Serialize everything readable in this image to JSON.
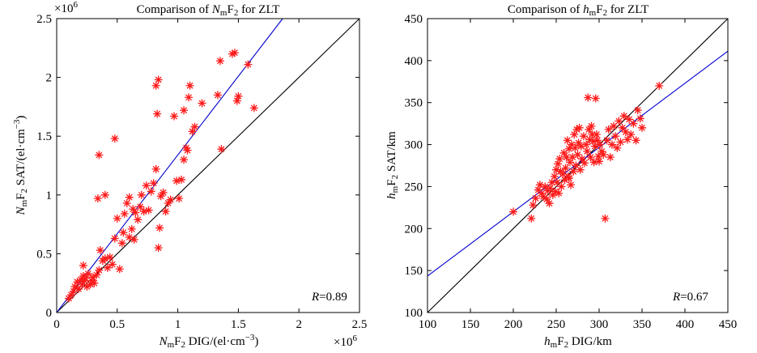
{
  "chart_data": [
    {
      "type": "scatter",
      "title": "Comparison of NmF2 for ZLT",
      "title_parts": {
        "pre": "Comparison of ",
        "var": "N",
        "sub": "m",
        "post": "F",
        "sub2": "2",
        "tail": " for ZLT"
      },
      "xlabel": "NmF2 DIG/(el·cm⁻³)",
      "xlabel_parts": {
        "var": "N",
        "sub": "m",
        "mid": "F",
        "sub2": "2",
        "rest": " DIG/(el·cm",
        "sup": "−3",
        "end": ")"
      },
      "ylabel": "NmF2 SAT/(el·cm⁻³)",
      "ylabel_parts": {
        "var": "N",
        "sub": "m",
        "mid": "F",
        "sub2": "2",
        "rest": " SAT/(el·cm",
        "sup": "−3",
        "end": ")"
      },
      "xlim": [
        0,
        2.5
      ],
      "ylim": [
        0,
        2.5
      ],
      "xticks": [
        0,
        0.5,
        1,
        1.5,
        2,
        2.5
      ],
      "xtick_labels": [
        "0",
        "0.5",
        "1",
        "1.5",
        "2",
        "2.5"
      ],
      "yticks": [
        0,
        0.5,
        1,
        1.5,
        2,
        2.5
      ],
      "ytick_labels": [
        "0",
        "0.5",
        "1",
        "1.5",
        "2",
        "2.5"
      ],
      "x_multiplier": {
        "base": "×10",
        "exp": "6"
      },
      "y_multiplier": {
        "base": "×10",
        "exp": "6"
      },
      "correlation": {
        "symbol": "R",
        "value": "=0.89"
      },
      "reference_line": {
        "color": "#000000",
        "slope": 1,
        "intercept": 0
      },
      "fit_line": {
        "color": "#0000cc",
        "slope": 1.34,
        "intercept": 0
      },
      "marker_color": "#ff0000",
      "points": [
        [
          0.1,
          0.12
        ],
        [
          0.12,
          0.15
        ],
        [
          0.14,
          0.18
        ],
        [
          0.15,
          0.22
        ],
        [
          0.17,
          0.26
        ],
        [
          0.18,
          0.2
        ],
        [
          0.2,
          0.28
        ],
        [
          0.21,
          0.24
        ],
        [
          0.22,
          0.31
        ],
        [
          0.23,
          0.27
        ],
        [
          0.24,
          0.29
        ],
        [
          0.25,
          0.22
        ],
        [
          0.26,
          0.33
        ],
        [
          0.28,
          0.24
        ],
        [
          0.29,
          0.27
        ],
        [
          0.3,
          0.3
        ],
        [
          0.22,
          0.4
        ],
        [
          0.31,
          0.25
        ],
        [
          0.33,
          0.32
        ],
        [
          0.35,
          0.36
        ],
        [
          0.36,
          0.53
        ],
        [
          0.38,
          0.44
        ],
        [
          0.4,
          0.46
        ],
        [
          0.42,
          0.38
        ],
        [
          0.44,
          0.47
        ],
        [
          0.46,
          0.41
        ],
        [
          0.48,
          0.63
        ],
        [
          0.5,
          0.8
        ],
        [
          0.52,
          0.37
        ],
        [
          0.54,
          0.59
        ],
        [
          0.55,
          0.68
        ],
        [
          0.56,
          0.84
        ],
        [
          0.58,
          0.93
        ],
        [
          0.6,
          0.64
        ],
        [
          0.62,
          0.71
        ],
        [
          0.63,
          0.88
        ],
        [
          0.64,
          0.62
        ],
        [
          0.65,
          0.85
        ],
        [
          0.67,
          0.79
        ],
        [
          0.69,
          0.9
        ],
        [
          0.7,
          1.0
        ],
        [
          0.72,
          0.86
        ],
        [
          0.74,
          1.08
        ],
        [
          0.76,
          0.87
        ],
        [
          0.78,
          1.03
        ],
        [
          0.8,
          1.1
        ],
        [
          0.82,
          1.22
        ],
        [
          0.84,
          0.55
        ],
        [
          0.85,
          0.72
        ],
        [
          0.86,
          0.99
        ],
        [
          0.88,
          1.02
        ],
        [
          0.9,
          0.86
        ],
        [
          0.92,
          0.93
        ],
        [
          0.94,
          0.96
        ],
        [
          0.97,
          1.67
        ],
        [
          0.99,
          1.12
        ],
        [
          1.01,
          0.97
        ],
        [
          1.03,
          1.13
        ],
        [
          1.05,
          1.72
        ],
        [
          1.07,
          1.4
        ],
        [
          1.09,
          1.83
        ],
        [
          1.1,
          1.93
        ],
        [
          1.12,
          1.54
        ],
        [
          1.14,
          1.58
        ],
        [
          1.2,
          1.78
        ],
        [
          1.33,
          1.85
        ],
        [
          1.35,
          2.14
        ],
        [
          1.36,
          1.39
        ],
        [
          1.45,
          2.2
        ],
        [
          1.47,
          2.21
        ],
        [
          1.49,
          1.8
        ],
        [
          1.5,
          1.84
        ],
        [
          1.58,
          2.11
        ],
        [
          1.63,
          1.74
        ],
        [
          0.82,
          1.93
        ],
        [
          0.84,
          1.98
        ],
        [
          0.83,
          1.69
        ],
        [
          0.34,
          0.97
        ],
        [
          0.35,
          1.34
        ],
        [
          0.4,
          1.0
        ],
        [
          0.48,
          1.48
        ],
        [
          1.05,
          1.3
        ],
        [
          1.08,
          1.38
        ],
        [
          0.6,
          0.98
        ]
      ]
    },
    {
      "type": "scatter",
      "title": "Comparison of hmF2 for ZLT",
      "title_parts": {
        "pre": "Comparison of ",
        "var": "h",
        "sub": "m",
        "post": "F",
        "sub2": "2",
        "tail": " for ZLT"
      },
      "xlabel": "hmF2 DIG/km",
      "xlabel_parts": {
        "var": "h",
        "sub": "m",
        "mid": "F",
        "sub2": "2",
        "rest": " DIG/km"
      },
      "ylabel": "hmF2 SAT/km",
      "ylabel_parts": {
        "var": "h",
        "sub": "m",
        "mid": "F",
        "sub2": "2",
        "rest": " SAT/km"
      },
      "xlim": [
        100,
        450
      ],
      "ylim": [
        100,
        450
      ],
      "xticks": [
        100,
        150,
        200,
        250,
        300,
        350,
        400,
        450
      ],
      "xtick_labels": [
        "100",
        "150",
        "200",
        "250",
        "300",
        "350",
        "400",
        "450"
      ],
      "yticks": [
        100,
        150,
        200,
        250,
        300,
        350,
        400,
        450
      ],
      "ytick_labels": [
        "100",
        "150",
        "200",
        "250",
        "300",
        "350",
        "400",
        "450"
      ],
      "correlation": {
        "symbol": "R",
        "value": "=0.67"
      },
      "reference_line": {
        "color": "#000000",
        "slope": 1,
        "intercept": 0
      },
      "fit_line": {
        "color": "#0000cc",
        "slope": 0.765,
        "intercept": 67
      },
      "marker_color": "#ff0000",
      "points": [
        [
          200,
          220
        ],
        [
          221,
          212
        ],
        [
          223,
          228
        ],
        [
          226,
          236
        ],
        [
          229,
          246
        ],
        [
          231,
          252
        ],
        [
          233,
          242
        ],
        [
          235,
          238
        ],
        [
          237,
          250
        ],
        [
          239,
          235
        ],
        [
          240,
          245
        ],
        [
          242,
          230
        ],
        [
          243,
          248
        ],
        [
          245,
          255
        ],
        [
          246,
          240
        ],
        [
          248,
          262
        ],
        [
          249,
          244
        ],
        [
          250,
          270
        ],
        [
          251,
          255
        ],
        [
          252,
          277
        ],
        [
          253,
          242
        ],
        [
          254,
          283
        ],
        [
          255,
          268
        ],
        [
          256,
          250
        ],
        [
          258,
          265
        ],
        [
          259,
          290
        ],
        [
          260,
          258
        ],
        [
          261,
          272
        ],
        [
          262,
          285
        ],
        [
          263,
          305
        ],
        [
          264,
          262
        ],
        [
          265,
          295
        ],
        [
          266,
          279
        ],
        [
          267,
          252
        ],
        [
          268,
          300
        ],
        [
          269,
          285
        ],
        [
          270,
          268
        ],
        [
          271,
          312
        ],
        [
          272,
          296
        ],
        [
          273,
          275
        ],
        [
          274,
          318
        ],
        [
          275,
          288
        ],
        [
          276,
          302
        ],
        [
          277,
          320
        ],
        [
          278,
          270
        ],
        [
          279,
          298
        ],
        [
          280,
          283
        ],
        [
          282,
          310
        ],
        [
          283,
          278
        ],
        [
          285,
          300
        ],
        [
          286,
          292
        ],
        [
          287,
          356
        ],
        [
          288,
          318
        ],
        [
          289,
          306
        ],
        [
          290,
          285
        ],
        [
          291,
          322
        ],
        [
          292,
          312
        ],
        [
          293,
          304
        ],
        [
          294,
          279
        ],
        [
          295,
          298
        ],
        [
          296,
          355
        ],
        [
          297,
          312
        ],
        [
          298,
          305
        ],
        [
          299,
          286
        ],
        [
          301,
          300
        ],
        [
          303,
          292
        ],
        [
          305,
          288
        ],
        [
          307,
          212
        ],
        [
          309,
          305
        ],
        [
          311,
          318
        ],
        [
          313,
          285
        ],
        [
          315,
          300
        ],
        [
          317,
          322
        ],
        [
          319,
          310
        ],
        [
          321,
          296
        ],
        [
          323,
          328
        ],
        [
          325,
          303
        ],
        [
          327,
          320
        ],
        [
          329,
          334
        ],
        [
          331,
          315
        ],
        [
          333,
          306
        ],
        [
          335,
          330
        ],
        [
          337,
          312
        ],
        [
          340,
          325
        ],
        [
          343,
          305
        ],
        [
          345,
          341
        ],
        [
          348,
          331
        ],
        [
          350,
          320
        ],
        [
          370,
          370
        ],
        [
          300,
          280
        ],
        [
          265,
          260
        ]
      ]
    }
  ]
}
